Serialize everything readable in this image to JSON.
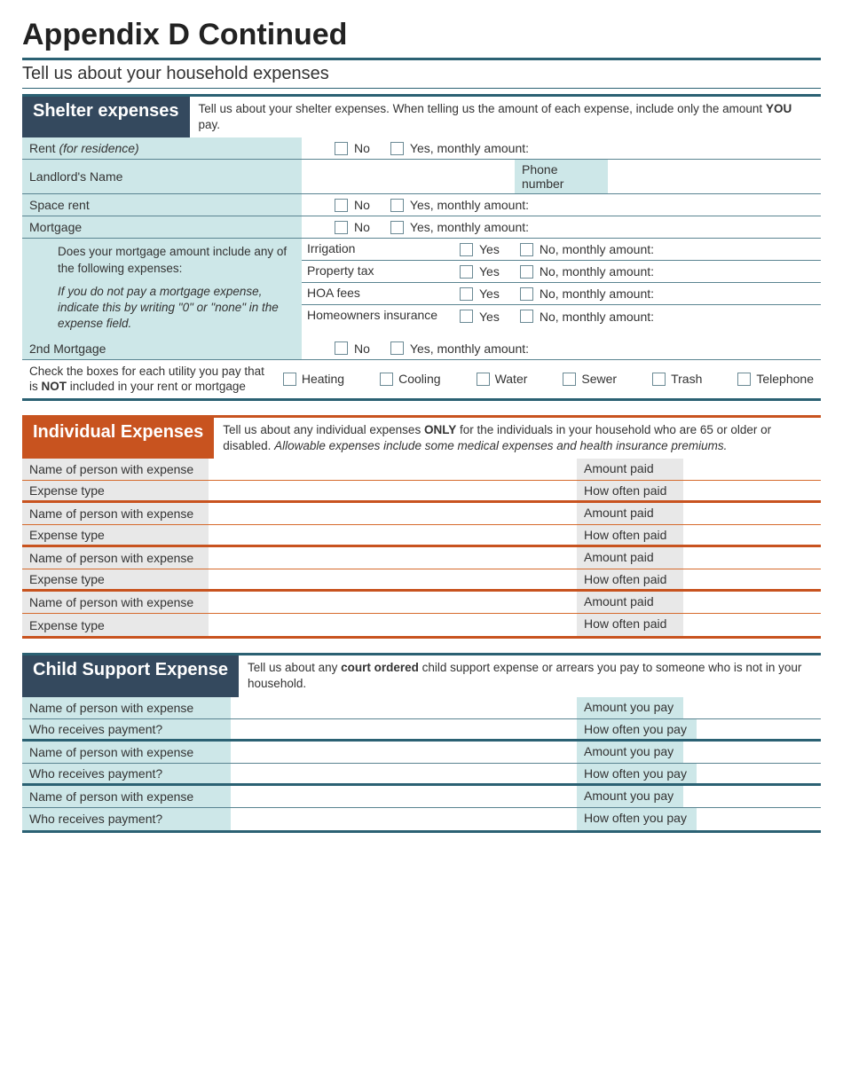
{
  "page": {
    "title": "Appendix D Continued",
    "subtitle": "Tell us about your household expenses"
  },
  "colors": {
    "teal_dark": "#2b6173",
    "teal_light": "#cde7e8",
    "header_bg": "#34495e",
    "orange": "#c8531f",
    "gray_light": "#e8e8e8",
    "border_light": "#5a8491"
  },
  "shelter": {
    "tab": "Shelter expenses",
    "desc_pre": "Tell us about your shelter expenses. When telling us the amount of each expense, include only the amount ",
    "desc_bold": "YOU",
    "desc_post": " pay.",
    "rent_label_pre": "Rent ",
    "rent_label_ital": "(for residence)",
    "no": "No",
    "yes_monthly": "Yes, monthly amount:",
    "landlord": "Landlord's Name",
    "phone": "Phone number",
    "space_rent": "Space rent",
    "mortgage": "Mortgage",
    "mortgage_q": "Does your mortgage amount  include any of the following expenses:",
    "mortgage_note": "If you do not pay a mortgage expense, indicate this by writing \"0\" or \"none\" in the expense field.",
    "sub_items": [
      "Irrigation",
      "Property tax",
      "HOA fees",
      "Homeowners insurance"
    ],
    "yes": "Yes",
    "no_monthly": "No, monthly amount:",
    "second_mortgage": "2nd Mortgage",
    "util_pre": "Check the boxes for each utility you pay that is ",
    "util_bold": "NOT",
    "util_post": " included in your rent or mortgage",
    "utilities": [
      "Heating",
      "Cooling",
      "Water",
      "Sewer",
      "Trash",
      "Telephone"
    ]
  },
  "individual": {
    "tab": "Individual Expenses",
    "desc_pre": "Tell us about any individual expenses ",
    "desc_bold": "ONLY",
    "desc_mid": " for the individuals in your household who are 65 or older or disabled. ",
    "desc_ital": "Allowable expenses include some medical expenses and health insurance premiums.",
    "name_label": "Name of person with expense",
    "type_label": "Expense type",
    "amount_label": "Amount paid",
    "often_label": "How often paid",
    "count": 4
  },
  "child": {
    "tab": "Child Support Expense",
    "desc_pre": "Tell us about any ",
    "desc_bold": "court ordered",
    "desc_post": " child support expense or arrears you pay to someone who is not in your household.",
    "name_label": "Name of person with expense",
    "who_label": "Who receives payment?",
    "amount_label": "Amount you pay",
    "often_label": "How often you pay",
    "count": 3
  }
}
